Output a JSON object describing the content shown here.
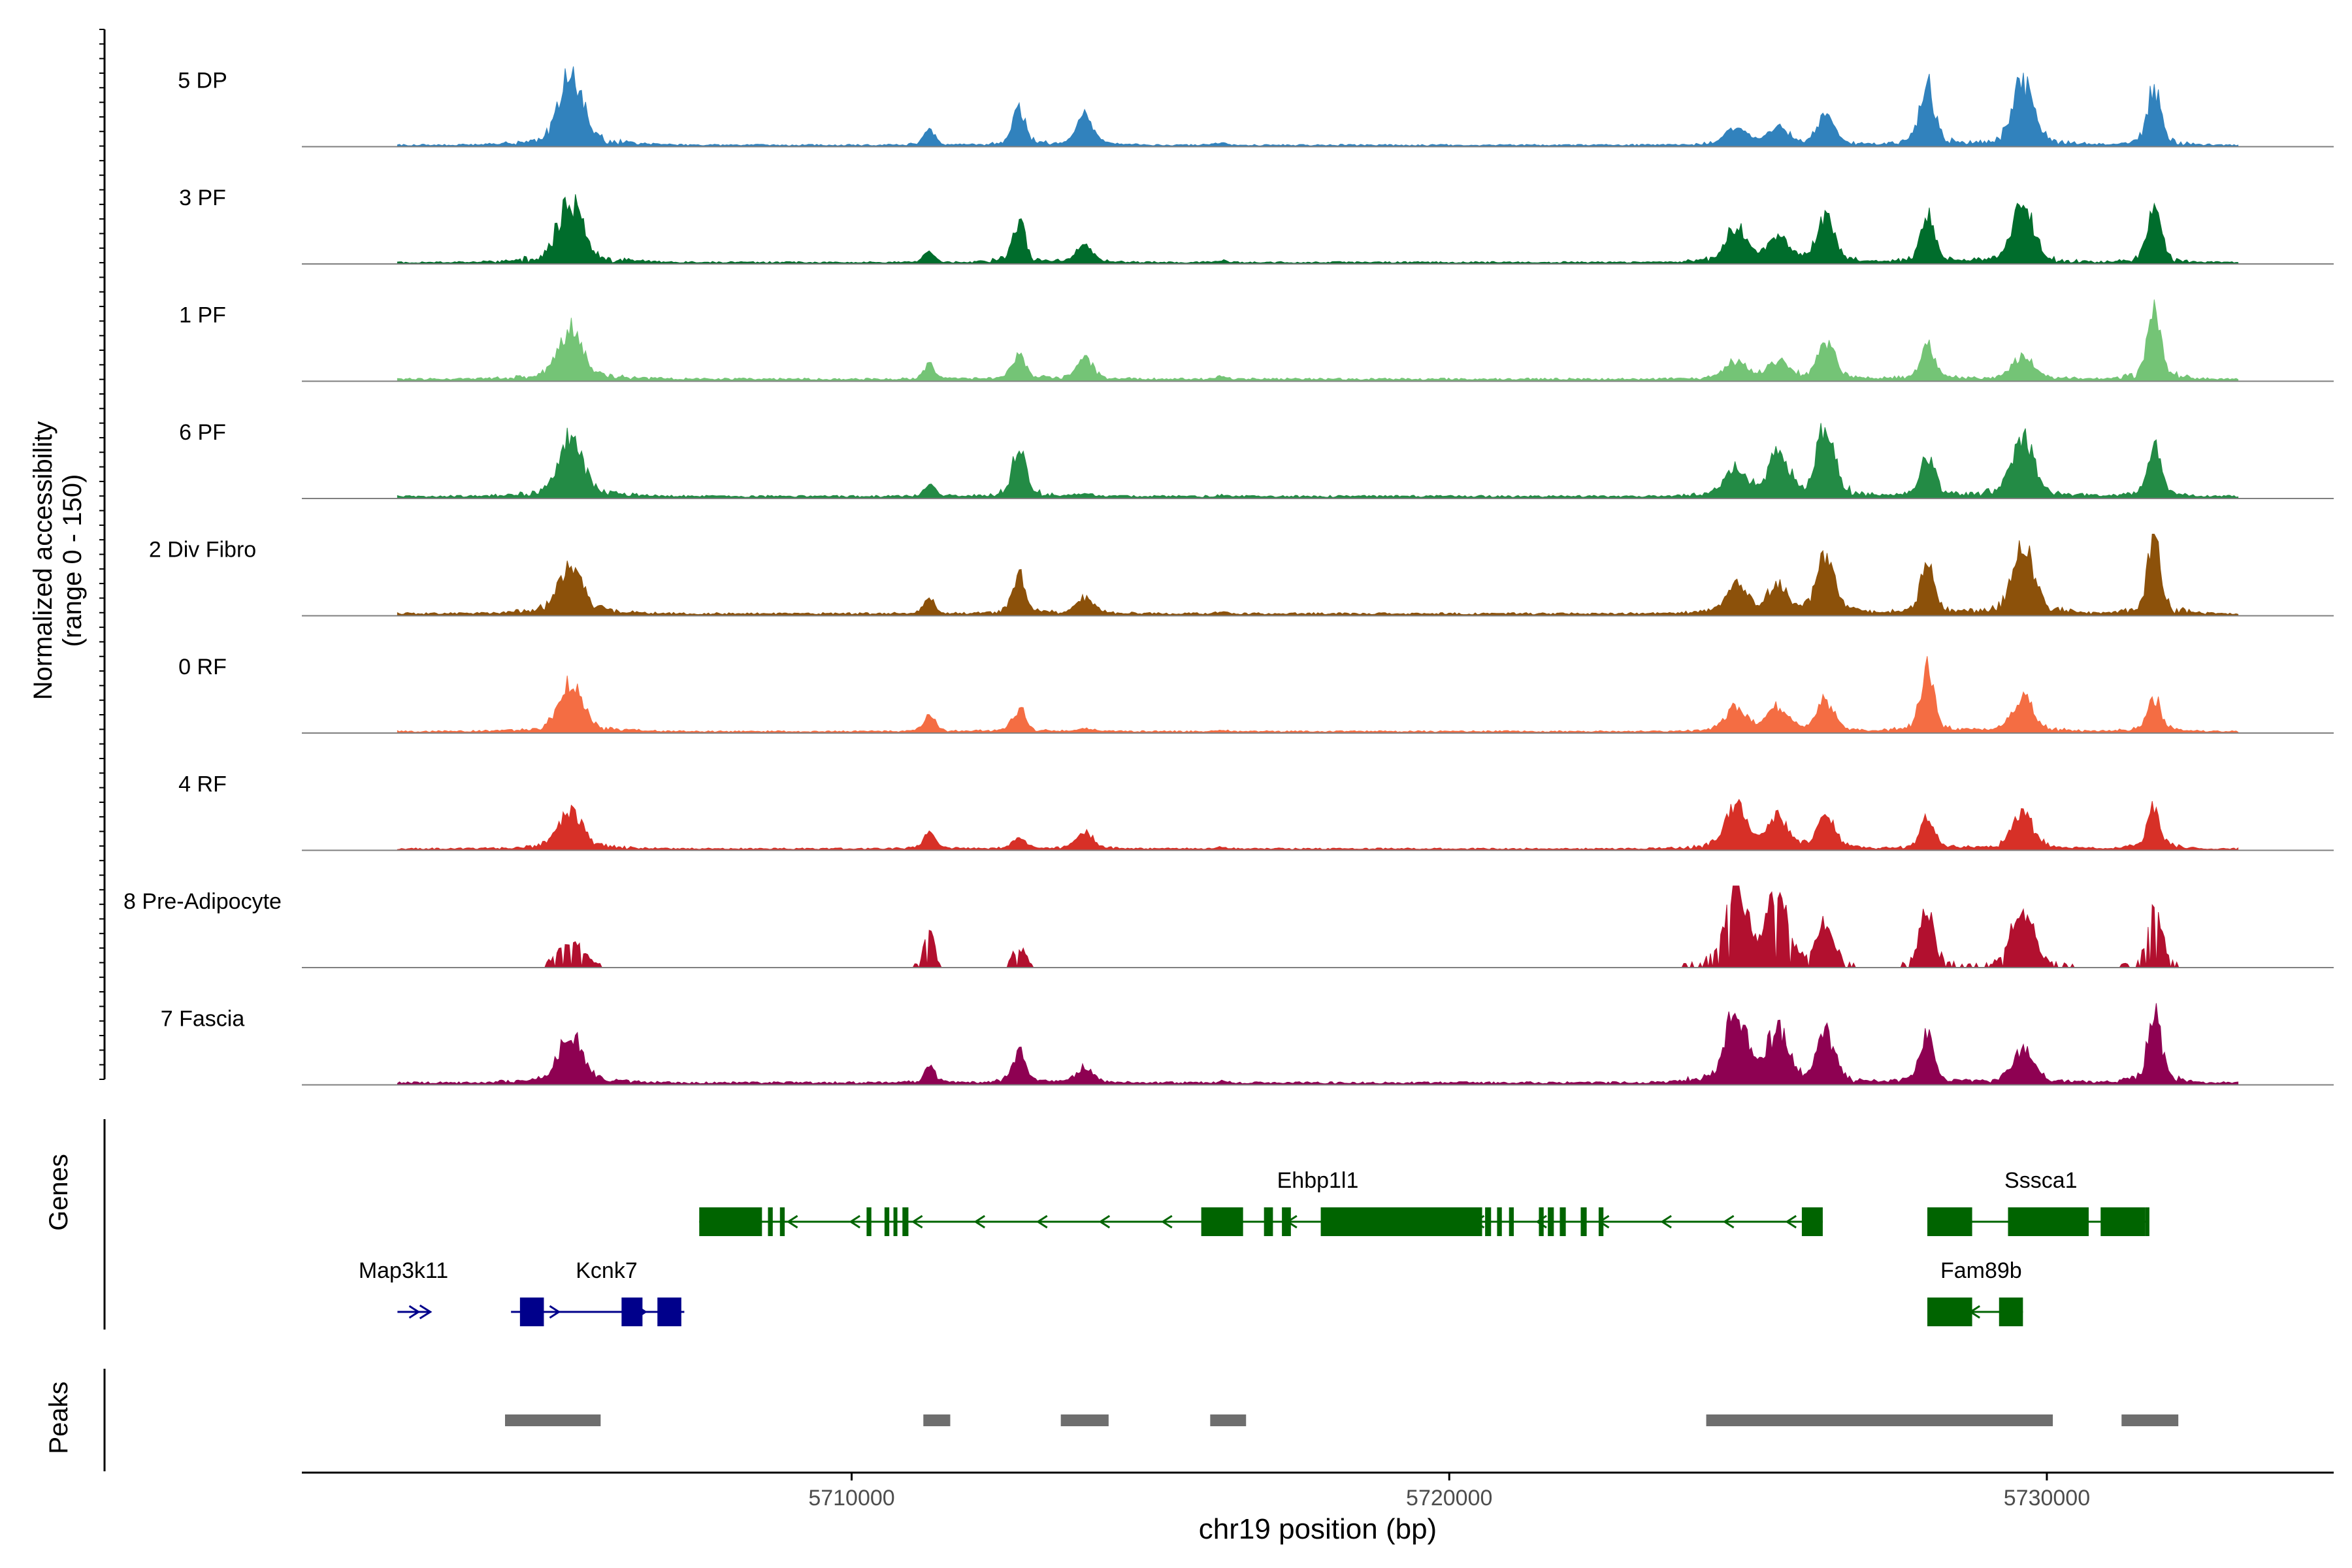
{
  "chart_data": {
    "type": "area",
    "title": "",
    "ylabel": "Normalized accessibility",
    "ylabel_range": "(range 0 - 150)",
    "ylim": [
      0,
      150
    ],
    "xlabel": "chr19 position (bp)",
    "xlim": [
      5700800,
      5734800
    ],
    "x_ticks": [
      5710000,
      5720000,
      5730000
    ],
    "x_tick_labels": [
      "5710000",
      "5720000",
      "5730000"
    ],
    "grid": false,
    "legend": "none",
    "peak_centers": [
      5705300,
      5711300,
      5712800,
      5713900,
      5716200,
      5724800,
      5725500,
      5726300,
      5728000,
      5729600,
      5731800
    ],
    "peak_widths": [
      280,
      120,
      150,
      190,
      110,
      250,
      230,
      200,
      160,
      240,
      150
    ],
    "signal_start": 5702400,
    "signal_end": 5733200,
    "series": [
      {
        "name": "5 DP",
        "color": "#3182BD",
        "style": "continuous",
        "peak_values": [
          115,
          28,
          58,
          48,
          5,
          30,
          28,
          50,
          107,
          110,
          102
        ],
        "baseline": 3
      },
      {
        "name": "3 PF",
        "color": "#006D2C",
        "style": "continuous",
        "peak_values": [
          105,
          18,
          70,
          28,
          3,
          55,
          45,
          72,
          80,
          95,
          95
        ],
        "baseline": 3
      },
      {
        "name": "1 PF",
        "color": "#74C476",
        "style": "continuous",
        "peak_values": [
          82,
          25,
          45,
          35,
          5,
          30,
          30,
          60,
          58,
          40,
          125
        ],
        "baseline": 4
      },
      {
        "name": "6 PF",
        "color": "#238B45",
        "style": "continuous",
        "peak_values": [
          95,
          20,
          88,
          5,
          2,
          45,
          70,
          115,
          70,
          110,
          82
        ],
        "baseline": 4
      },
      {
        "name": "2 Div Fibro",
        "color": "#8C510A",
        "style": "continuous",
        "peak_values": [
          88,
          25,
          62,
          28,
          3,
          45,
          45,
          105,
          85,
          115,
          135
        ],
        "baseline": 4
      },
      {
        "name": "0 RF",
        "color": "#F46D43",
        "style": "continuous",
        "peak_values": [
          78,
          30,
          40,
          5,
          2,
          40,
          42,
          50,
          102,
          55,
          58
        ],
        "baseline": 3
      },
      {
        "name": "4 RF",
        "color": "#D73027",
        "style": "continuous",
        "peak_values": [
          62,
          30,
          18,
          28,
          3,
          68,
          50,
          55,
          50,
          60,
          70
        ],
        "baseline": 3
      },
      {
        "name": "8 Pre-Adipocyte",
        "color": "#B2102F",
        "style": "sparse",
        "peak_values": [
          42,
          55,
          35,
          5,
          2,
          130,
          130,
          70,
          100,
          105,
          110
        ],
        "baseline": 0
      },
      {
        "name": "7 Fascia",
        "color": "#8E0152",
        "style": "continuous",
        "peak_values": [
          75,
          28,
          52,
          25,
          3,
          120,
          85,
          85,
          80,
          60,
          115
        ],
        "baseline": 4
      }
    ],
    "genes": [
      {
        "name": "Ehbp1l1",
        "row": 1,
        "strand": "-",
        "color": "#006400",
        "start": 5707450,
        "end": 5726250,
        "exons": [
          [
            5707450,
            5708500
          ],
          [
            5708600,
            5708680
          ],
          [
            5708800,
            5708880
          ],
          [
            5710250,
            5710330
          ],
          [
            5710550,
            5710630
          ],
          [
            5710700,
            5710750
          ],
          [
            5710850,
            5710950
          ],
          [
            5715850,
            5716550
          ],
          [
            5716900,
            5717050
          ],
          [
            5717200,
            5717350
          ],
          [
            5717850,
            5720550
          ],
          [
            5720600,
            5720700
          ],
          [
            5720800,
            5720880
          ],
          [
            5721000,
            5721080
          ],
          [
            5721500,
            5721580
          ],
          [
            5721650,
            5721750
          ],
          [
            5721850,
            5721950
          ],
          [
            5722200,
            5722300
          ],
          [
            5722500,
            5722580
          ],
          [
            5725900,
            5726250
          ]
        ],
        "label_position": 5717800
      },
      {
        "name": "Sssca1",
        "row": 1,
        "strand": "-",
        "color": "#006400",
        "start": 5728000,
        "end": 5731700,
        "exons": [
          [
            5728000,
            5728750
          ],
          [
            5729350,
            5730700
          ],
          [
            5730900,
            5731650
          ],
          [
            5731650,
            5731700
          ]
        ],
        "label_position": 5729900
      },
      {
        "name": "Map3k11",
        "row": 2,
        "strand": "+",
        "color": "#00008B",
        "start": 5702400,
        "end": 5702950,
        "exons": [],
        "label_position": 5702500
      },
      {
        "name": "Kcnk7",
        "row": 2,
        "strand": "+",
        "color": "#00008B",
        "start": 5704300,
        "end": 5707200,
        "exons": [
          [
            5704450,
            5704850
          ],
          [
            5706150,
            5706500
          ],
          [
            5706750,
            5707150
          ]
        ],
        "label_position": 5705900
      },
      {
        "name": "Fam89b",
        "row": 2,
        "strand": "-",
        "color": "#006400",
        "start": 5728000,
        "end": 5729600,
        "exons": [
          [
            5728000,
            5728750
          ],
          [
            5729200,
            5729600
          ]
        ],
        "label_position": 5728900
      }
    ],
    "peaks": [
      [
        5704200,
        5705800
      ],
      [
        5711200,
        5711650
      ],
      [
        5713500,
        5714300
      ],
      [
        5716000,
        5716600
      ],
      [
        5724300,
        5730100
      ],
      [
        5731250,
        5732200
      ]
    ],
    "track_labels": {
      "genes": "Genes",
      "peaks": "Peaks"
    }
  }
}
